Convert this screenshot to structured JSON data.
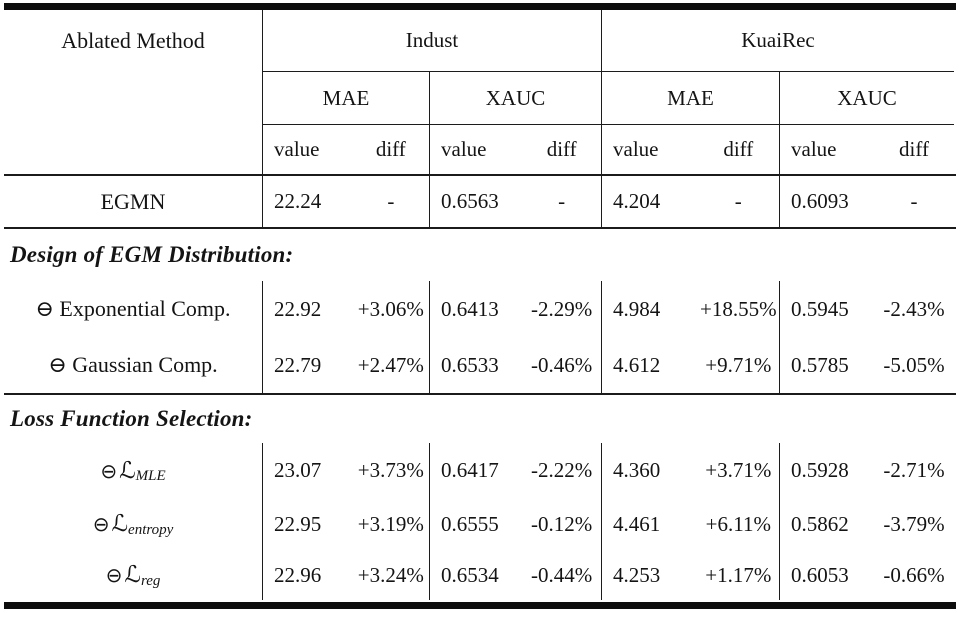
{
  "header": {
    "method_col": "Ablated Method",
    "datasets": {
      "indust": "Indust",
      "kuairec": "KuaiRec"
    },
    "metrics": [
      "MAE",
      "XAUC",
      "MAE",
      "XAUC"
    ],
    "subcols": {
      "value": "value",
      "diff": "diff"
    }
  },
  "baseline": {
    "label": "EGMN",
    "cells": [
      [
        "22.24",
        "-"
      ],
      [
        "0.6563",
        "-"
      ],
      [
        "4.204",
        "-"
      ],
      [
        "0.6093",
        "-"
      ]
    ]
  },
  "sections": [
    {
      "title": "Design of EGM Distribution:",
      "rows": [
        {
          "label": "⊖ Exponential Comp.",
          "cells": [
            [
              "22.92",
              "+3.06%"
            ],
            [
              "0.6413",
              "-2.29%"
            ],
            [
              "4.984",
              "+18.55%"
            ],
            [
              "0.5945",
              "-2.43%"
            ]
          ]
        },
        {
          "label": "⊖ Gaussian Comp.",
          "cells": [
            [
              "22.79",
              "+2.47%"
            ],
            [
              "0.6533",
              "-0.46%"
            ],
            [
              "4.612",
              "+9.71%"
            ],
            [
              "0.5785",
              "-5.05%"
            ]
          ]
        }
      ]
    },
    {
      "title": "Loss Function Selection:",
      "rows": [
        {
          "symbol": "⊖",
          "script": "ℒ",
          "sub": "MLE",
          "cells": [
            [
              "23.07",
              "+3.73%"
            ],
            [
              "0.6417",
              "-2.22%"
            ],
            [
              "4.360",
              "+3.71%"
            ],
            [
              "0.5928",
              "-2.71%"
            ]
          ]
        },
        {
          "symbol": "⊖",
          "script": "ℒ",
          "sub": "entropy",
          "cells": [
            [
              "22.95",
              "+3.19%"
            ],
            [
              "0.6555",
              "-0.12%"
            ],
            [
              "4.461",
              "+6.11%"
            ],
            [
              "0.5862",
              "-3.79%"
            ]
          ]
        },
        {
          "symbol": "⊖",
          "script": "ℒ",
          "sub": "reg",
          "cells": [
            [
              "22.96",
              "+3.24%"
            ],
            [
              "0.6534",
              "-0.44%"
            ],
            [
              "4.253",
              "+1.17%"
            ],
            [
              "0.6053",
              "-0.66%"
            ]
          ]
        }
      ]
    }
  ]
}
